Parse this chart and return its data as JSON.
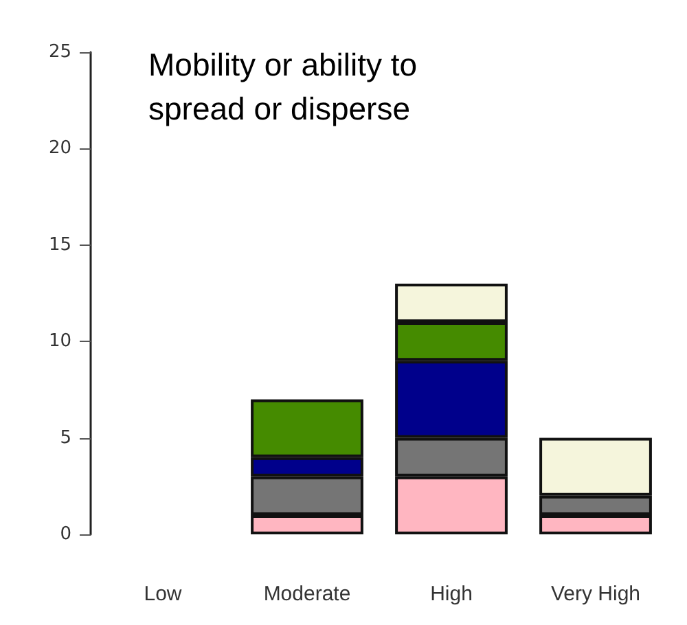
{
  "chart_data": {
    "type": "bar",
    "title": "Mobility or ability to spread or disperse",
    "categories": [
      "Low",
      "Moderate",
      "High",
      "Very High"
    ],
    "stacked": true,
    "series": [
      {
        "color": "#ffb6c1",
        "values": [
          0,
          1,
          3,
          1
        ]
      },
      {
        "color": "#757575",
        "values": [
          0,
          2,
          2,
          1
        ]
      },
      {
        "color": "#00008b",
        "values": [
          0,
          1,
          4,
          0
        ]
      },
      {
        "color": "#458b00",
        "values": [
          0,
          3,
          2,
          0
        ]
      },
      {
        "color": "#f5f5dc",
        "values": [
          0,
          0,
          2,
          3
        ]
      }
    ],
    "ylim": [
      0,
      25
    ],
    "yticks": [
      0,
      5,
      10,
      15,
      20,
      25
    ],
    "grid": false
  }
}
